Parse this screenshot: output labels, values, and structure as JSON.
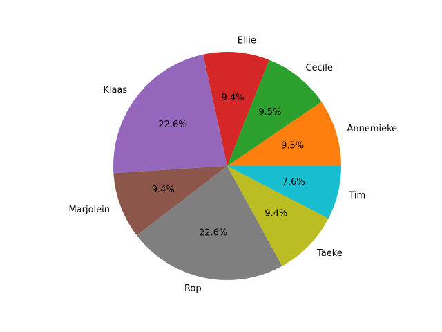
{
  "chart_data": {
    "type": "pie",
    "title": "",
    "start_angle_deg": 0,
    "direction": "counterclockwise",
    "slices": [
      {
        "label": "Annemieke",
        "value": 9.5,
        "pct_text": "9.5%",
        "color": "#ff7f0e"
      },
      {
        "label": "Cecile",
        "value": 9.5,
        "pct_text": "9.5%",
        "color": "#2ca02c"
      },
      {
        "label": "Ellie",
        "value": 9.4,
        "pct_text": "9.4%",
        "color": "#d62728"
      },
      {
        "label": "Klaas",
        "value": 22.6,
        "pct_text": "22.6%",
        "color": "#9467bd"
      },
      {
        "label": "Marjolein",
        "value": 9.4,
        "pct_text": "9.4%",
        "color": "#8c564b"
      },
      {
        "label": "Rop",
        "value": 22.6,
        "pct_text": "22.6%",
        "color": "#7f7f7f"
      },
      {
        "label": "Taeke",
        "value": 9.4,
        "pct_text": "9.4%",
        "color": "#bcbd22"
      },
      {
        "label": "Tim",
        "value": 7.6,
        "pct_text": "7.6%",
        "color": "#17becf"
      }
    ]
  }
}
